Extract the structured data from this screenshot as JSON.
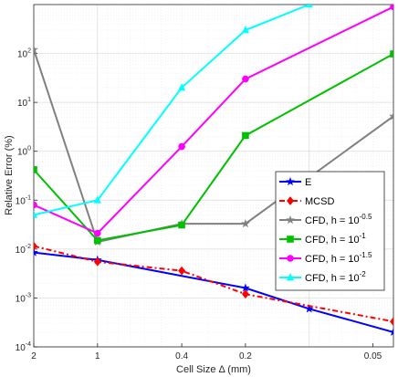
{
  "chart_data": {
    "type": "line",
    "xlabel": "Cell Size Δ (mm)",
    "ylabel": "Relative Error (%)",
    "xscale": "log",
    "x_reversed": true,
    "yscale": "log",
    "xlim": [
      0.04,
      2
    ],
    "ylim": [
      0.0001,
      1000
    ],
    "x_ticks": [
      2,
      1,
      0.4,
      0.2,
      0.05
    ],
    "x_tick_labels": [
      "2",
      "1",
      "0.4",
      "0.2",
      "0.05"
    ],
    "y_ticks": [
      0.0001,
      0.001,
      0.01,
      0.1,
      1,
      10,
      100
    ],
    "y_tick_labels": [
      {
        "base": "10",
        "exp": "-4"
      },
      {
        "base": "10",
        "exp": "-3"
      },
      {
        "base": "10",
        "exp": "-2"
      },
      {
        "base": "10",
        "exp": "-1"
      },
      {
        "base": "10",
        "exp": "0"
      },
      {
        "base": "10",
        "exp": "1"
      },
      {
        "base": "10",
        "exp": "2"
      }
    ],
    "grid": true,
    "minor_grid": true,
    "legend_position": "lower-right",
    "series": [
      {
        "name": "E",
        "legend": {
          "text": "E",
          "exp": ""
        },
        "color": "#0000ff",
        "marker": "star",
        "dash": "",
        "x": [
          2,
          1,
          0.2,
          0.1,
          0.04
        ],
        "y": [
          0.0085,
          0.006,
          0.0016,
          0.0006,
          0.0002
        ]
      },
      {
        "name": "MCSD",
        "legend": {
          "text": "MCSD",
          "exp": ""
        },
        "color": "#ff0000",
        "marker": "diamond",
        "dash": "6,3,2,3",
        "x": [
          2,
          1,
          0.4,
          0.2,
          0.04
        ],
        "y": [
          0.0115,
          0.0055,
          0.0036,
          0.0012,
          0.00033
        ]
      },
      {
        "name": "CFD, h = 10^-0.5",
        "legend": {
          "text": "CFD, h = 10",
          "exp": "-0.5"
        },
        "color": "#808080",
        "marker": "star",
        "dash": "",
        "x": [
          2,
          1,
          0.4,
          0.2,
          0.04
        ],
        "y": [
          120,
          0.014,
          0.033,
          0.033,
          5.2
        ]
      },
      {
        "name": "CFD, h = 10^-1",
        "legend": {
          "text": "CFD, h = 10",
          "exp": "-1"
        },
        "color": "#00c000",
        "marker": "square",
        "dash": "",
        "x": [
          2,
          1,
          0.4,
          0.2,
          0.04
        ],
        "y": [
          0.42,
          0.015,
          0.031,
          2.1,
          98
        ]
      },
      {
        "name": "CFD, h = 10^-1.5",
        "legend": {
          "text": "CFD, h = 10",
          "exp": "-1.5"
        },
        "color": "#ff00ff",
        "marker": "circle",
        "dash": "",
        "x": [
          2,
          1,
          0.4,
          0.2,
          0.04
        ],
        "y": [
          0.08,
          0.021,
          1.25,
          30,
          900
        ]
      },
      {
        "name": "CFD, h = 10^-2",
        "legend": {
          "text": "CFD, h = 10",
          "exp": "-2"
        },
        "color": "#00ffff",
        "marker": "triangle",
        "dash": "",
        "x": [
          2,
          1,
          0.4,
          0.2,
          0.1
        ],
        "y": [
          0.05,
          0.1,
          20,
          300,
          1000
        ]
      }
    ]
  }
}
